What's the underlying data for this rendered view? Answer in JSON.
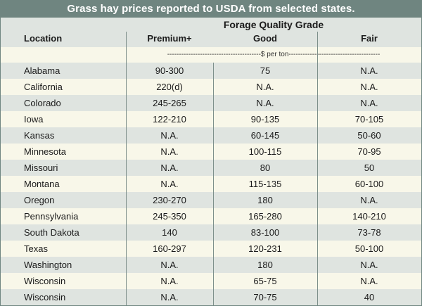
{
  "title": "Grass hay prices reported to USDA from selected states.",
  "group_header": "Forage Quality Grade",
  "columns": {
    "location": "Location",
    "premium": "Premium+",
    "good": "Good",
    "fair": "Fair"
  },
  "units_label": "----------------------------------------$ per ton---------------------------------------",
  "rows": [
    {
      "location": "Alabama",
      "premium": "90-300",
      "good": "75",
      "fair": "N.A."
    },
    {
      "location": "California",
      "premium": "220(d)",
      "good": "N.A.",
      "fair": "N.A."
    },
    {
      "location": "Colorado",
      "premium": "245-265",
      "good": "N.A.",
      "fair": "N.A."
    },
    {
      "location": "Iowa",
      "premium": "122-210",
      "good": "90-135",
      "fair": "70-105"
    },
    {
      "location": "Kansas",
      "premium": "N.A.",
      "good": "60-145",
      "fair": "50-60"
    },
    {
      "location": "Minnesota",
      "premium": "N.A.",
      "good": "100-115",
      "fair": "70-95"
    },
    {
      "location": "Missouri",
      "premium": "N.A.",
      "good": "80",
      "fair": "50"
    },
    {
      "location": "Montana",
      "premium": "N.A.",
      "good": "115-135",
      "fair": "60-100"
    },
    {
      "location": "Oregon",
      "premium": "230-270",
      "good": "180",
      "fair": "N.A."
    },
    {
      "location": "Pennsylvania",
      "premium": "245-350",
      "good": "165-280",
      "fair": "140-210"
    },
    {
      "location": "South Dakota",
      "premium": "140",
      "good": "83-100",
      "fair": "73-78"
    },
    {
      "location": "Texas",
      "premium": "160-297",
      "good": "120-231",
      "fair": "50-100"
    },
    {
      "location": "Washington",
      "premium": "N.A.",
      "good": "180",
      "fair": "N.A."
    },
    {
      "location": "Wisconsin",
      "premium": "N.A.",
      "good": "65-75",
      "fair": "N.A."
    },
    {
      "location": "Wisconsin",
      "premium": "N.A.",
      "good": "70-75",
      "fair": "40"
    }
  ],
  "colors": {
    "title_bar": "#6f8580",
    "band": "#dfe4e0",
    "background": "#f8f7e9"
  }
}
